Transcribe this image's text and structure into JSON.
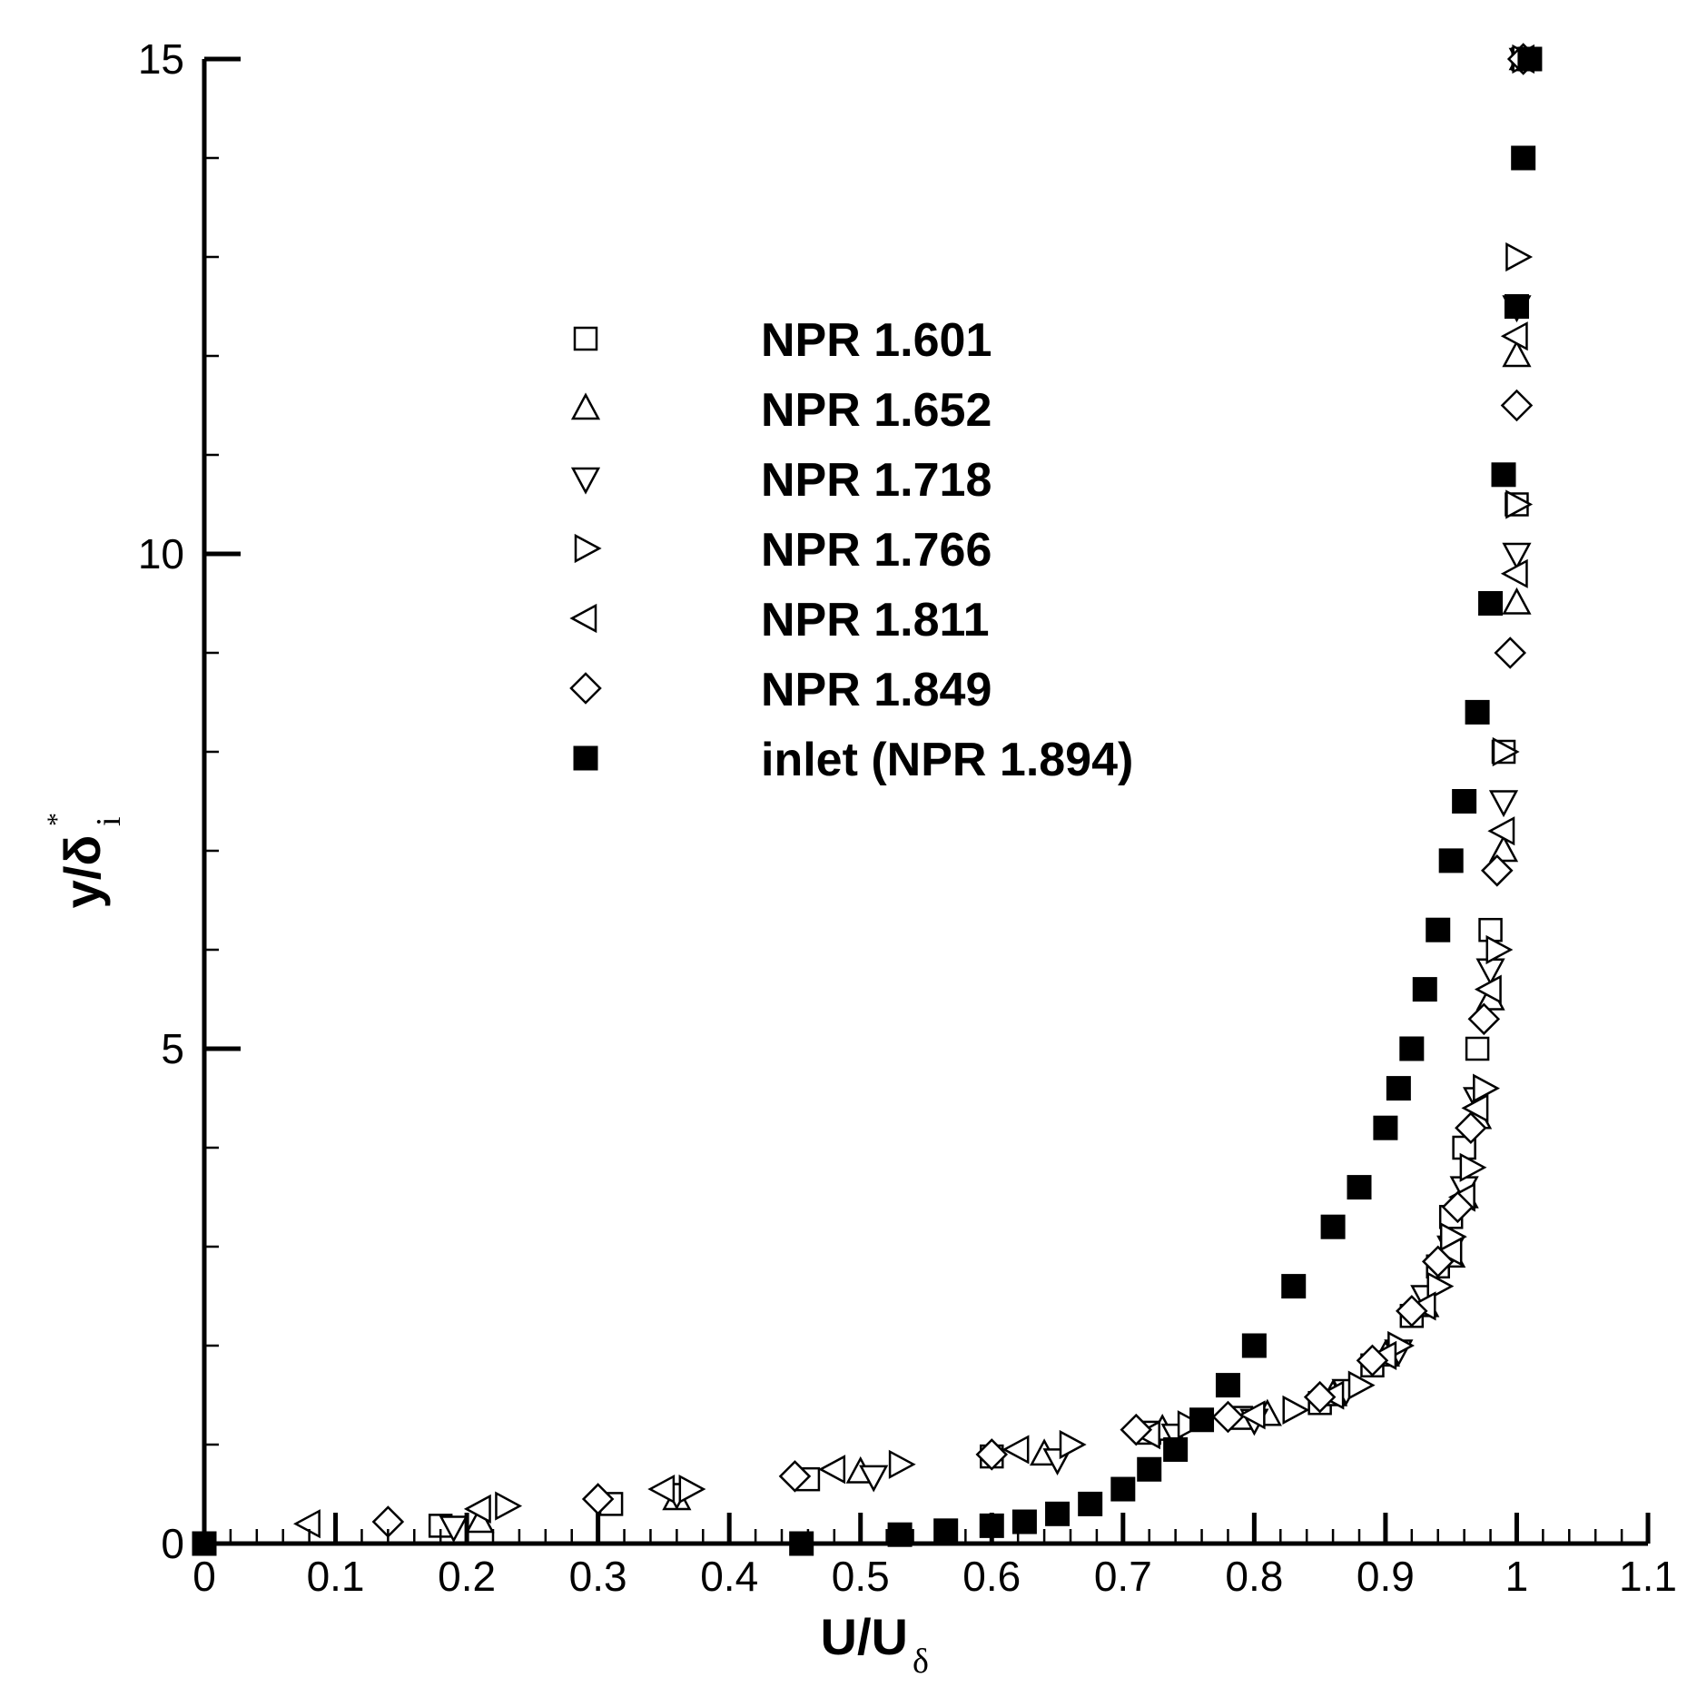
{
  "chart_data": {
    "type": "scatter",
    "xlabel": {
      "main": "U/U",
      "sub": "δ"
    },
    "ylabel": {
      "main": "y/δ",
      "sub": "i",
      "sup": "*"
    },
    "xlim": [
      0,
      1.1
    ],
    "ylim": [
      0,
      15
    ],
    "x_ticks": [
      "0",
      "0.1",
      "0.2",
      "0.3",
      "0.4",
      "0.5",
      "0.6",
      "0.7",
      "0.8",
      "0.9",
      "1",
      "1.1"
    ],
    "y_ticks": [
      "0",
      "5",
      "10",
      "15"
    ],
    "grid": false,
    "legend_position": "upper-middle",
    "series": [
      {
        "name": "NPR 1.601",
        "marker": "square-open",
        "points": [
          [
            0.18,
            0.18
          ],
          [
            0.31,
            0.4
          ],
          [
            0.46,
            0.65
          ],
          [
            0.6,
            0.88
          ],
          [
            0.72,
            1.12
          ],
          [
            0.79,
            1.27
          ],
          [
            0.85,
            1.42
          ],
          [
            0.89,
            1.8
          ],
          [
            0.92,
            2.3
          ],
          [
            0.94,
            2.8
          ],
          [
            0.95,
            3.3
          ],
          [
            0.96,
            4.0
          ],
          [
            0.97,
            5.0
          ],
          [
            0.98,
            6.2
          ],
          [
            0.99,
            8.0
          ],
          [
            1.0,
            10.5
          ],
          [
            1.0,
            12.5
          ],
          [
            1.005,
            15.0
          ]
        ]
      },
      {
        "name": "NPR 1.652",
        "marker": "triangle-up-open",
        "points": [
          [
            0.21,
            0.22
          ],
          [
            0.36,
            0.45
          ],
          [
            0.5,
            0.72
          ],
          [
            0.64,
            0.9
          ],
          [
            0.73,
            1.15
          ],
          [
            0.81,
            1.3
          ],
          [
            0.86,
            1.5
          ],
          [
            0.9,
            1.9
          ],
          [
            0.93,
            2.4
          ],
          [
            0.95,
            2.9
          ],
          [
            0.96,
            3.5
          ],
          [
            0.97,
            4.3
          ],
          [
            0.98,
            5.5
          ],
          [
            0.99,
            7.0
          ],
          [
            1.0,
            9.5
          ],
          [
            1.0,
            12.0
          ],
          [
            1.005,
            15.0
          ]
        ]
      },
      {
        "name": "NPR 1.718",
        "marker": "triangle-down-open",
        "points": [
          [
            0.19,
            0.17
          ],
          [
            0.36,
            0.5
          ],
          [
            0.51,
            0.68
          ],
          [
            0.65,
            0.85
          ],
          [
            0.74,
            1.1
          ],
          [
            0.8,
            1.25
          ],
          [
            0.87,
            1.55
          ],
          [
            0.91,
            1.95
          ],
          [
            0.93,
            2.5
          ],
          [
            0.95,
            3.0
          ],
          [
            0.96,
            3.6
          ],
          [
            0.97,
            4.5
          ],
          [
            0.98,
            5.8
          ],
          [
            0.99,
            7.5
          ],
          [
            1.0,
            10.0
          ],
          [
            1.0,
            12.5
          ],
          [
            1.005,
            15.0
          ]
        ]
      },
      {
        "name": "NPR 1.766",
        "marker": "triangle-right-open",
        "points": [
          [
            0.23,
            0.38
          ],
          [
            0.37,
            0.55
          ],
          [
            0.53,
            0.8
          ],
          [
            0.66,
            1.0
          ],
          [
            0.75,
            1.2
          ],
          [
            0.83,
            1.35
          ],
          [
            0.88,
            1.6
          ],
          [
            0.91,
            2.0
          ],
          [
            0.94,
            2.6
          ],
          [
            0.95,
            3.1
          ],
          [
            0.965,
            3.8
          ],
          [
            0.975,
            4.6
          ],
          [
            0.985,
            6.0
          ],
          [
            0.99,
            8.0
          ],
          [
            1.0,
            10.5
          ],
          [
            1.0,
            13.0
          ],
          [
            1.005,
            15.0
          ]
        ]
      },
      {
        "name": "NPR 1.811",
        "marker": "triangle-left-open",
        "points": [
          [
            0.08,
            0.2
          ],
          [
            0.21,
            0.35
          ],
          [
            0.35,
            0.55
          ],
          [
            0.48,
            0.75
          ],
          [
            0.62,
            0.95
          ],
          [
            0.72,
            1.1
          ],
          [
            0.8,
            1.3
          ],
          [
            0.86,
            1.5
          ],
          [
            0.9,
            1.9
          ],
          [
            0.93,
            2.4
          ],
          [
            0.95,
            2.95
          ],
          [
            0.96,
            3.5
          ],
          [
            0.97,
            4.4
          ],
          [
            0.98,
            5.6
          ],
          [
            0.99,
            7.2
          ],
          [
            1.0,
            9.8
          ],
          [
            1.0,
            12.2
          ],
          [
            1.005,
            15.0
          ]
        ]
      },
      {
        "name": "NPR 1.849",
        "marker": "diamond-open",
        "points": [
          [
            0.14,
            0.22
          ],
          [
            0.3,
            0.45
          ],
          [
            0.45,
            0.68
          ],
          [
            0.6,
            0.9
          ],
          [
            0.71,
            1.15
          ],
          [
            0.78,
            1.28
          ],
          [
            0.85,
            1.48
          ],
          [
            0.89,
            1.85
          ],
          [
            0.92,
            2.35
          ],
          [
            0.94,
            2.85
          ],
          [
            0.955,
            3.4
          ],
          [
            0.965,
            4.2
          ],
          [
            0.975,
            5.3
          ],
          [
            0.985,
            6.8
          ],
          [
            0.995,
            9.0
          ],
          [
            1.0,
            11.5
          ],
          [
            1.005,
            15.0
          ]
        ]
      },
      {
        "name": "inlet (NPR 1.894)",
        "marker": "square-filled",
        "points": [
          [
            0.0,
            0.0
          ],
          [
            0.455,
            0.0
          ],
          [
            0.53,
            0.09
          ],
          [
            0.565,
            0.13
          ],
          [
            0.6,
            0.18
          ],
          [
            0.625,
            0.22
          ],
          [
            0.65,
            0.3
          ],
          [
            0.675,
            0.4
          ],
          [
            0.7,
            0.55
          ],
          [
            0.72,
            0.75
          ],
          [
            0.74,
            0.95
          ],
          [
            0.76,
            1.25
          ],
          [
            0.78,
            1.6
          ],
          [
            0.8,
            2.0
          ],
          [
            0.83,
            2.6
          ],
          [
            0.86,
            3.2
          ],
          [
            0.88,
            3.6
          ],
          [
            0.9,
            4.2
          ],
          [
            0.91,
            4.6
          ],
          [
            0.92,
            5.0
          ],
          [
            0.93,
            5.6
          ],
          [
            0.94,
            6.2
          ],
          [
            0.95,
            6.9
          ],
          [
            0.96,
            7.5
          ],
          [
            0.97,
            8.4
          ],
          [
            0.98,
            9.5
          ],
          [
            0.99,
            10.8
          ],
          [
            1.0,
            12.5
          ],
          [
            1.005,
            14.0
          ],
          [
            1.01,
            15.0
          ]
        ]
      }
    ]
  }
}
